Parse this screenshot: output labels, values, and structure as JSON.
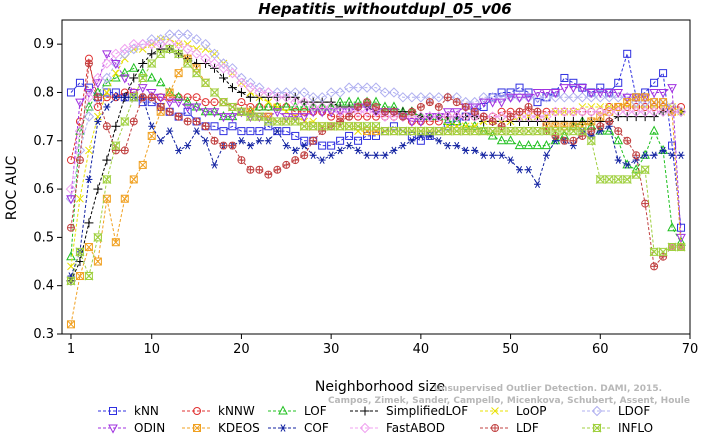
{
  "chart_data": {
    "type": "line",
    "title": "Hepatitis_withoutdupl_05_v06",
    "xlabel": "Neighborhood size",
    "ylabel": "ROC AUC",
    "xlim": [
      0,
      70
    ],
    "ylim": [
      0.3,
      0.95
    ],
    "xticks": [
      1,
      10,
      20,
      30,
      40,
      50,
      60,
      70
    ],
    "yticks": [
      0.3,
      0.4,
      0.5,
      0.6,
      0.7,
      0.8,
      0.9
    ],
    "grid": false,
    "legend_position": "bottom",
    "watermark": [
      "Unsupervised Outlier Detection. DAMI, 2015.",
      "Campos, Zimek, Sander, Campello, Micenkova, Schubert, Assent, Houle"
    ],
    "x": [
      1,
      2,
      3,
      4,
      5,
      6,
      7,
      8,
      9,
      10,
      11,
      12,
      13,
      14,
      15,
      16,
      17,
      18,
      19,
      20,
      21,
      22,
      23,
      24,
      25,
      26,
      27,
      28,
      29,
      30,
      31,
      32,
      33,
      34,
      35,
      36,
      37,
      38,
      39,
      40,
      41,
      42,
      43,
      44,
      45,
      46,
      47,
      48,
      49,
      50,
      51,
      52,
      53,
      54,
      55,
      56,
      57,
      58,
      59,
      60,
      61,
      62,
      63,
      64,
      65,
      66,
      67,
      68,
      69
    ],
    "series": [
      {
        "name": "kNN",
        "color": "#3030e0",
        "marker": "square",
        "values": [
          0.8,
          0.82,
          0.81,
          0.79,
          0.8,
          0.8,
          0.79,
          0.79,
          0.78,
          0.78,
          0.77,
          0.76,
          0.75,
          0.76,
          0.74,
          0.73,
          0.73,
          0.72,
          0.73,
          0.72,
          0.72,
          0.72,
          0.73,
          0.72,
          0.72,
          0.71,
          0.7,
          0.7,
          0.69,
          0.69,
          0.7,
          0.71,
          0.7,
          0.71,
          0.71,
          0.72,
          0.73,
          0.72,
          0.71,
          0.7,
          0.71,
          0.72,
          0.73,
          0.74,
          0.75,
          0.76,
          0.77,
          0.79,
          0.8,
          0.8,
          0.81,
          0.8,
          0.78,
          0.79,
          0.8,
          0.83,
          0.82,
          0.81,
          0.8,
          0.81,
          0.8,
          0.82,
          0.88,
          0.79,
          0.8,
          0.82,
          0.84,
          0.69,
          0.52
        ]
      },
      {
        "name": "kNNW",
        "color": "#e03030",
        "marker": "circle",
        "values": [
          0.66,
          0.74,
          0.87,
          0.77,
          0.79,
          0.79,
          0.8,
          0.8,
          0.79,
          0.79,
          0.79,
          0.79,
          0.79,
          0.79,
          0.79,
          0.78,
          0.78,
          0.78,
          0.77,
          0.78,
          0.77,
          0.77,
          0.77,
          0.77,
          0.77,
          0.76,
          0.76,
          0.76,
          0.76,
          0.75,
          0.75,
          0.75,
          0.75,
          0.75,
          0.75,
          0.75,
          0.75,
          0.75,
          0.74,
          0.74,
          0.74,
          0.74,
          0.75,
          0.75,
          0.75,
          0.75,
          0.75,
          0.75,
          0.76,
          0.76,
          0.76,
          0.76,
          0.76,
          0.76,
          0.76,
          0.76,
          0.76,
          0.76,
          0.76,
          0.76,
          0.77,
          0.77,
          0.77,
          0.77,
          0.77,
          0.77,
          0.77,
          0.77,
          0.77
        ]
      },
      {
        "name": "LOF",
        "color": "#20c020",
        "marker": "triangle-up",
        "values": [
          0.46,
          0.72,
          0.77,
          0.8,
          0.82,
          0.83,
          0.84,
          0.85,
          0.84,
          0.83,
          0.82,
          0.8,
          0.79,
          0.78,
          0.77,
          0.76,
          0.76,
          0.75,
          0.75,
          0.76,
          0.76,
          0.77,
          0.77,
          0.77,
          0.77,
          0.77,
          0.77,
          0.77,
          0.77,
          0.77,
          0.78,
          0.78,
          0.78,
          0.78,
          0.78,
          0.77,
          0.77,
          0.76,
          0.76,
          0.75,
          0.75,
          0.75,
          0.74,
          0.74,
          0.73,
          0.73,
          0.72,
          0.71,
          0.7,
          0.7,
          0.69,
          0.69,
          0.69,
          0.69,
          0.7,
          0.71,
          0.73,
          0.74,
          0.73,
          0.72,
          0.72,
          0.7,
          0.65,
          0.64,
          0.67,
          0.72,
          0.68,
          0.52,
          0.49
        ]
      },
      {
        "name": "SimplifiedLOF",
        "color": "#000000",
        "marker": "plus",
        "values": [
          0.41,
          0.45,
          0.53,
          0.6,
          0.66,
          0.73,
          0.79,
          0.83,
          0.86,
          0.88,
          0.89,
          0.89,
          0.88,
          0.87,
          0.86,
          0.86,
          0.85,
          0.83,
          0.81,
          0.8,
          0.79,
          0.79,
          0.79,
          0.79,
          0.79,
          0.79,
          0.78,
          0.78,
          0.78,
          0.78,
          0.77,
          0.77,
          0.77,
          0.77,
          0.76,
          0.76,
          0.76,
          0.76,
          0.76,
          0.75,
          0.75,
          0.75,
          0.75,
          0.75,
          0.75,
          0.75,
          0.74,
          0.74,
          0.74,
          0.74,
          0.74,
          0.74,
          0.74,
          0.74,
          0.74,
          0.74,
          0.74,
          0.74,
          0.74,
          0.74,
          0.74,
          0.75,
          0.75,
          0.75,
          0.75,
          0.75,
          0.76,
          0.76,
          0.76
        ]
      },
      {
        "name": "LoOP",
        "color": "#e8e000",
        "marker": "x",
        "values": [
          0.44,
          0.58,
          0.68,
          0.75,
          0.8,
          0.84,
          0.87,
          0.89,
          0.89,
          0.9,
          0.91,
          0.91,
          0.9,
          0.9,
          0.89,
          0.89,
          0.88,
          0.86,
          0.84,
          0.82,
          0.8,
          0.79,
          0.78,
          0.77,
          0.76,
          0.75,
          0.74,
          0.74,
          0.73,
          0.73,
          0.73,
          0.73,
          0.72,
          0.72,
          0.72,
          0.72,
          0.72,
          0.72,
          0.72,
          0.72,
          0.72,
          0.72,
          0.73,
          0.73,
          0.73,
          0.73,
          0.74,
          0.74,
          0.74,
          0.74,
          0.75,
          0.75,
          0.75,
          0.75,
          0.76,
          0.76,
          0.76,
          0.77,
          0.77,
          0.77,
          0.77,
          0.77,
          0.77,
          0.77,
          0.77,
          0.77,
          0.77,
          0.77,
          0.76
        ]
      },
      {
        "name": "LDOF",
        "color": "#b0b0f0",
        "marker": "diamond",
        "values": [
          0.58,
          0.68,
          0.75,
          0.79,
          0.83,
          0.86,
          0.88,
          0.89,
          0.9,
          0.91,
          0.91,
          0.92,
          0.92,
          0.92,
          0.91,
          0.9,
          0.88,
          0.86,
          0.85,
          0.83,
          0.82,
          0.81,
          0.8,
          0.8,
          0.8,
          0.8,
          0.8,
          0.79,
          0.79,
          0.8,
          0.8,
          0.81,
          0.81,
          0.81,
          0.81,
          0.8,
          0.8,
          0.79,
          0.79,
          0.79,
          0.79,
          0.79,
          0.79,
          0.79,
          0.78,
          0.78,
          0.79,
          0.79,
          0.79,
          0.79,
          0.79,
          0.79,
          0.79,
          0.79,
          0.79,
          0.79,
          0.79,
          0.79,
          0.79,
          0.79,
          0.79,
          0.79,
          0.79,
          0.78,
          0.78,
          0.78,
          0.78,
          0.77,
          0.76
        ]
      },
      {
        "name": "ODIN",
        "color": "#a030e0",
        "marker": "triangle-down",
        "values": [
          0.58,
          0.78,
          0.8,
          0.82,
          0.88,
          0.86,
          0.83,
          0.8,
          0.81,
          0.8,
          0.79,
          0.78,
          0.78,
          0.77,
          0.77,
          0.76,
          0.76,
          0.75,
          0.75,
          0.76,
          0.75,
          0.75,
          0.75,
          0.76,
          0.75,
          0.75,
          0.75,
          0.76,
          0.76,
          0.76,
          0.76,
          0.76,
          0.77,
          0.77,
          0.76,
          0.76,
          0.76,
          0.75,
          0.74,
          0.74,
          0.75,
          0.75,
          0.76,
          0.76,
          0.77,
          0.77,
          0.78,
          0.78,
          0.78,
          0.79,
          0.79,
          0.79,
          0.8,
          0.8,
          0.8,
          0.81,
          0.81,
          0.81,
          0.8,
          0.8,
          0.8,
          0.8,
          0.79,
          0.79,
          0.79,
          0.8,
          0.8,
          0.81,
          0.5
        ]
      },
      {
        "name": "KDEOS",
        "color": "#f0a020",
        "marker": "square-x",
        "values": [
          0.32,
          0.42,
          0.48,
          0.45,
          0.58,
          0.49,
          0.58,
          0.62,
          0.65,
          0.71,
          0.76,
          0.8,
          0.84,
          0.87,
          0.85,
          0.82,
          0.8,
          0.78,
          0.77,
          0.76,
          0.76,
          0.75,
          0.75,
          0.74,
          0.74,
          0.74,
          0.73,
          0.73,
          0.73,
          0.73,
          0.73,
          0.73,
          0.73,
          0.72,
          0.72,
          0.72,
          0.72,
          0.72,
          0.72,
          0.72,
          0.72,
          0.72,
          0.72,
          0.72,
          0.72,
          0.72,
          0.72,
          0.72,
          0.72,
          0.72,
          0.72,
          0.72,
          0.72,
          0.73,
          0.73,
          0.73,
          0.73,
          0.73,
          0.74,
          0.75,
          0.76,
          0.77,
          0.78,
          0.79,
          0.79,
          0.78,
          0.78,
          0.76,
          0.48
        ]
      },
      {
        "name": "COF",
        "color": "#1020a0",
        "marker": "asterisk",
        "values": [
          0.42,
          0.47,
          0.62,
          0.74,
          0.77,
          0.79,
          0.79,
          0.79,
          0.79,
          0.73,
          0.7,
          0.72,
          0.68,
          0.69,
          0.72,
          0.7,
          0.65,
          0.69,
          0.69,
          0.7,
          0.69,
          0.7,
          0.7,
          0.72,
          0.69,
          0.68,
          0.69,
          0.67,
          0.66,
          0.67,
          0.68,
          0.69,
          0.68,
          0.67,
          0.67,
          0.67,
          0.68,
          0.69,
          0.7,
          0.71,
          0.71,
          0.7,
          0.69,
          0.69,
          0.68,
          0.68,
          0.67,
          0.67,
          0.67,
          0.66,
          0.64,
          0.64,
          0.61,
          0.67,
          0.7,
          0.7,
          0.69,
          0.72,
          0.71,
          0.72,
          0.73,
          0.66,
          0.65,
          0.66,
          0.67,
          0.67,
          0.68,
          0.67,
          0.67
        ]
      },
      {
        "name": "FastABOD",
        "color": "#f0a0f0",
        "marker": "diamond",
        "values": [
          0.6,
          0.72,
          0.79,
          0.83,
          0.86,
          0.88,
          0.89,
          0.9,
          0.9,
          0.9,
          0.9,
          0.9,
          0.9,
          0.89,
          0.88,
          0.87,
          0.86,
          0.85,
          0.84,
          0.82,
          0.81,
          0.8,
          0.8,
          0.79,
          0.79,
          0.78,
          0.78,
          0.77,
          0.77,
          0.77,
          0.76,
          0.76,
          0.76,
          0.76,
          0.76,
          0.75,
          0.75,
          0.75,
          0.75,
          0.75,
          0.75,
          0.75,
          0.75,
          0.75,
          0.75,
          0.75,
          0.75,
          0.75,
          0.75,
          0.75,
          0.75,
          0.75,
          0.75,
          0.75,
          0.76,
          0.76,
          0.76,
          0.76,
          0.76,
          0.76,
          0.76,
          0.76,
          0.76,
          0.76,
          0.76,
          0.76,
          0.76,
          0.76,
          0.76
        ]
      },
      {
        "name": "LDF",
        "color": "#c04040",
        "marker": "circle-plus",
        "values": [
          0.52,
          0.66,
          0.86,
          0.79,
          0.73,
          0.68,
          0.68,
          0.74,
          0.79,
          0.79,
          0.77,
          0.76,
          0.75,
          0.74,
          0.74,
          0.73,
          0.7,
          0.69,
          0.69,
          0.66,
          0.64,
          0.64,
          0.63,
          0.64,
          0.65,
          0.66,
          0.67,
          0.7,
          0.72,
          0.73,
          0.74,
          0.75,
          0.77,
          0.78,
          0.77,
          0.76,
          0.76,
          0.75,
          0.76,
          0.77,
          0.78,
          0.77,
          0.79,
          0.78,
          0.77,
          0.76,
          0.75,
          0.74,
          0.73,
          0.75,
          0.76,
          0.77,
          0.76,
          0.72,
          0.71,
          0.7,
          0.7,
          0.71,
          0.72,
          0.73,
          0.74,
          0.72,
          0.7,
          0.67,
          0.57,
          0.44,
          0.46,
          0.48,
          0.48
        ]
      },
      {
        "name": "INFLO",
        "color": "#a0d040",
        "marker": "hourglass",
        "values": [
          0.41,
          0.47,
          0.42,
          0.5,
          0.62,
          0.69,
          0.74,
          0.79,
          0.83,
          0.86,
          0.88,
          0.89,
          0.88,
          0.86,
          0.84,
          0.82,
          0.8,
          0.78,
          0.77,
          0.76,
          0.75,
          0.75,
          0.74,
          0.74,
          0.74,
          0.74,
          0.73,
          0.73,
          0.73,
          0.73,
          0.73,
          0.73,
          0.73,
          0.73,
          0.73,
          0.72,
          0.72,
          0.72,
          0.72,
          0.72,
          0.72,
          0.72,
          0.72,
          0.72,
          0.72,
          0.72,
          0.72,
          0.72,
          0.72,
          0.72,
          0.72,
          0.72,
          0.72,
          0.72,
          0.72,
          0.72,
          0.72,
          0.72,
          0.7,
          0.62,
          0.62,
          0.62,
          0.62,
          0.63,
          0.64,
          0.47,
          0.47,
          0.48,
          0.48
        ]
      }
    ]
  },
  "legend_rows": [
    [
      "kNN",
      "kNNW",
      "LOF",
      "SimplifiedLOF",
      "LoOP",
      "LDOF"
    ],
    [
      "ODIN",
      "KDEOS",
      "COF",
      "FastABOD",
      "LDF",
      "INFLO"
    ]
  ]
}
